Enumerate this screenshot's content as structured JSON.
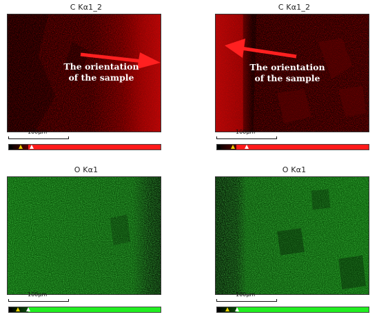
{
  "panels": [
    {
      "id": "c-map-left",
      "title": "C Kα1_2",
      "element_color": "#e00000",
      "arrow_direction": "right",
      "annotation_lines": [
        "The orientation",
        "of the sample"
      ],
      "scale_label": "100µm",
      "colorbar_color": "#ff1a1a"
    },
    {
      "id": "c-map-right",
      "title": "C Kα1_2",
      "element_color": "#e00000",
      "arrow_direction": "left",
      "annotation_lines": [
        "The orientation",
        "of the sample"
      ],
      "scale_label": "100µm",
      "colorbar_color": "#ff1a1a"
    },
    {
      "id": "o-map-left",
      "title": "O Kα1",
      "element_color": "#22c422",
      "scale_label": "100µm",
      "colorbar_color": "#22ee22"
    },
    {
      "id": "o-map-right",
      "title": "O Kα1",
      "element_color": "#22c422",
      "scale_label": "100µm",
      "colorbar_color": "#22ee22"
    }
  ],
  "colors": {
    "arrow": "#ff2020",
    "marker_black": "#000000",
    "marker_yellow": "#f0d000",
    "marker_white": "#ffffff"
  }
}
